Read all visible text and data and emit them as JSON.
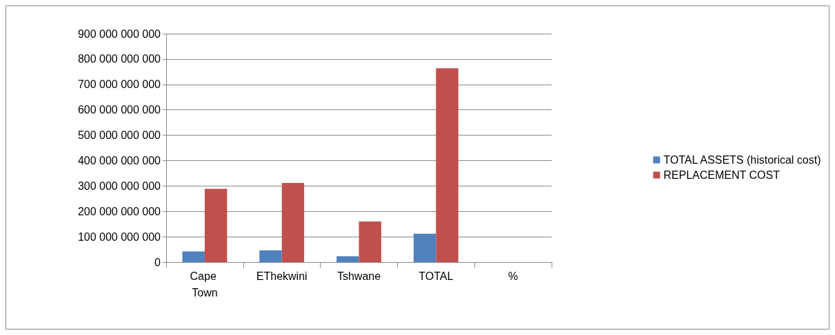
{
  "chart_data": {
    "type": "bar",
    "categories": [
      "Cape Town",
      "EThekwini",
      "Tshwane",
      "TOTAL",
      "%"
    ],
    "series": [
      {
        "name": "TOTAL ASSETS (historical cost)",
        "color": "#4f81bd",
        "values": [
          42000000000,
          46000000000,
          23000000000,
          112000000000,
          null
        ]
      },
      {
        "name": "REPLACEMENT COST",
        "color": "#c0504d",
        "values": [
          289000000000,
          312000000000,
          160000000000,
          764000000000,
          null
        ]
      }
    ],
    "ylim": [
      0,
      900000000000
    ],
    "yticks": [
      {
        "value": 0,
        "label": "0"
      },
      {
        "value": 100000000000,
        "label": "100 000 000 000"
      },
      {
        "value": 200000000000,
        "label": "200 000 000 000"
      },
      {
        "value": 300000000000,
        "label": "300 000 000 000"
      },
      {
        "value": 400000000000,
        "label": "400 000 000 000"
      },
      {
        "value": 500000000000,
        "label": "500 000 000 000"
      },
      {
        "value": 600000000000,
        "label": "600 000 000 000"
      },
      {
        "value": 700000000000,
        "label": "700 000 000 000"
      },
      {
        "value": 800000000000,
        "label": "800 000 000 000"
      },
      {
        "value": 900000000000,
        "label": "900 000 000 000"
      }
    ],
    "grid": "y",
    "legend": "right"
  }
}
